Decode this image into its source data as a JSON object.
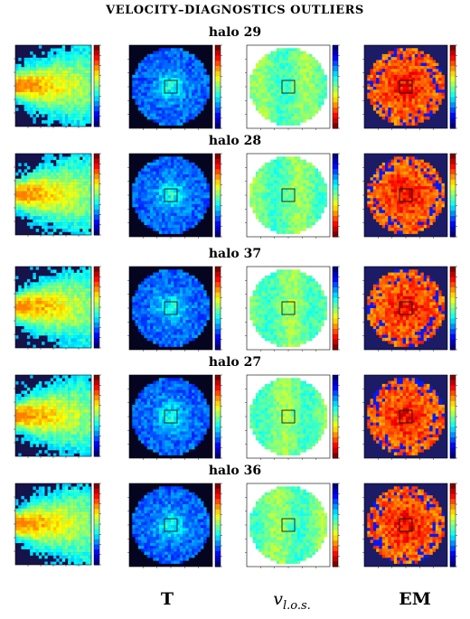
{
  "title": "VELOCITY–DIAGNOSTICS OUTLIERS",
  "halos": [
    {
      "label": "halo 29"
    },
    {
      "label": "halo 28"
    },
    {
      "label": "halo 37"
    },
    {
      "label": "halo 27"
    },
    {
      "label": "halo 36"
    }
  ],
  "columns": [
    {
      "label": "",
      "kind": "phase-space"
    },
    {
      "label": "T",
      "kind": "temperature-map"
    },
    {
      "label": "v",
      "subscript": "l.o.s.",
      "kind": "los-velocity-map"
    },
    {
      "label": "EM",
      "kind": "emission-measure-map"
    }
  ],
  "colors": {
    "background_dark": "#0a0a3a",
    "jet_low": "#00007f",
    "jet_high": "#7f0000",
    "marker": "#000000"
  }
}
